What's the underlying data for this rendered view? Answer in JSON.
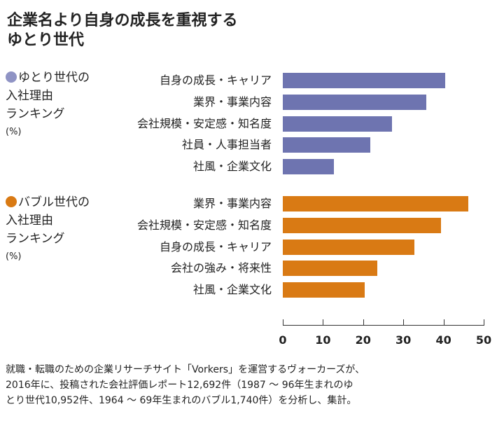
{
  "chart_data": {
    "type": "bar",
    "title": [
      "企業名より自身の成長を重視する",
      "ゆとり世代"
    ],
    "xlim": [
      0,
      50
    ],
    "xticks": [
      0,
      10,
      20,
      30,
      40,
      50
    ],
    "groups": [
      {
        "name": "ゆとり世代の",
        "legend_lines": [
          "入社理由",
          "ランキング"
        ],
        "unit": "(%)",
        "color": "#6e74b0",
        "categories": [
          "自身の成長・キャリア",
          "業界・事業内容",
          "会社規模・安定感・知名度",
          "社員・人事担当者",
          "社風・企業文化"
        ],
        "values": [
          40.4,
          35.8,
          27.2,
          21.8,
          12.7
        ]
      },
      {
        "name": "バブル世代の",
        "legend_lines": [
          "入社理由",
          "ランキング"
        ],
        "unit": "(%)",
        "color": "#d97a14",
        "categories": [
          "業界・事業内容",
          "会社規模・安定感・知名度",
          "自身の成長・キャリア",
          "会社の強み・将来性",
          "社風・企業文化"
        ],
        "values": [
          46.1,
          39.4,
          32.8,
          23.6,
          20.3
        ]
      }
    ]
  },
  "note": [
    "就職・転職のための企業リサーチサイト「Vorkers」を運営するヴォーカーズが、",
    "2016年に、投稿された会社評価レポート12,692件（1987 ～ 96年生まれのゆ",
    "とり世代10,952件、1964 ～ 69年生まれのバブル1,740件）を分析し、集計。"
  ]
}
